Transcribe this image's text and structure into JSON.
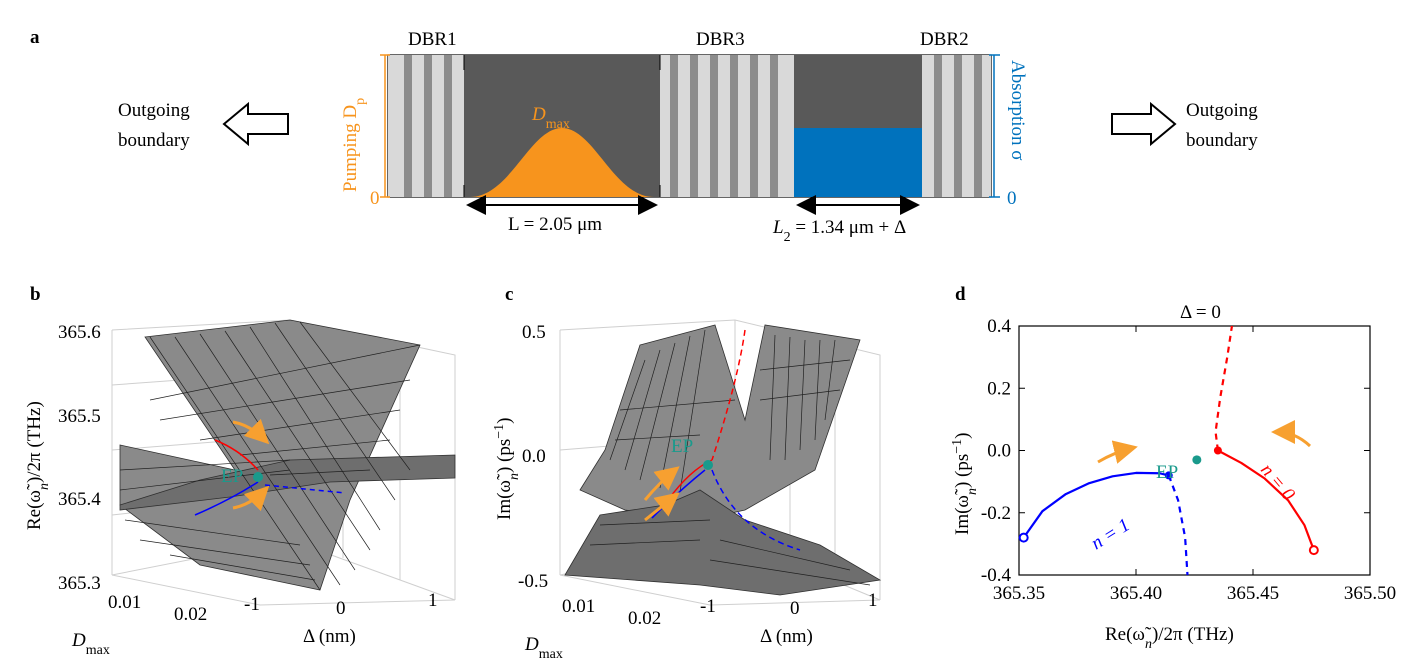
{
  "panels": {
    "a": "a",
    "b": "b",
    "c": "c",
    "d": "d"
  },
  "panel_a": {
    "dbr1": "DBR1",
    "dbr3": "DBR3",
    "dbr2": "DBR2",
    "left_arrow_label_1": "Outgoing",
    "left_arrow_label_2": "boundary",
    "right_arrow_label_1": "Outgoing",
    "right_arrow_label_2": "boundary",
    "pump_axis": "Pumping D",
    "pump_axis_sub": "p",
    "pump_zero": "0",
    "pump_peak": "D",
    "pump_peak_sub": "max",
    "absorption_axis": "Absorption σ",
    "absorption_zero": "0",
    "length_L": "L = 2.05 μm",
    "length_L2": "L",
    "length_L2_sub": "2",
    "length_L2_rest": " = 1.34 μm + Δ",
    "colors": {
      "pump": "#f7941d",
      "absorption": "#0072bd",
      "cavity": "#595959"
    }
  },
  "panel_b": {
    "zlabel": "Re(ω̃",
    "zlabel_sub": "n",
    "zlabel_rest": ")/2π (THz)",
    "zticks": [
      "365.6",
      "365.5",
      "365.4",
      "365.3"
    ],
    "dticks": [
      "0.01",
      "0.02"
    ],
    "dlabel": "D",
    "dlabel_sub": "max",
    "xticks": [
      "-1",
      "0",
      "1"
    ],
    "xlabel": "Δ (nm)",
    "ep": "EP"
  },
  "panel_c": {
    "zlabel": "Im(ω̃",
    "zlabel_sub": "n",
    "zlabel_rest": ") (ps",
    "zlabel_sup": "−1",
    "zlabel_end": ")",
    "zticks": [
      "0.5",
      "0.0",
      "-0.5"
    ],
    "dticks": [
      "0.01",
      "0.02"
    ],
    "dlabel": "D",
    "dlabel_sub": "max",
    "xticks": [
      "-1",
      "0",
      "1"
    ],
    "xlabel": "Δ (nm)",
    "ep": "EP"
  },
  "panel_d": {
    "title": "Δ = 0",
    "xlabel": "Re(ω̃",
    "xlabel_sub": "n",
    "xlabel_rest": ")/2π (THz)",
    "ylabel": "Im(ω̃",
    "ylabel_sub": "n",
    "ylabel_rest": ") (ps",
    "ylabel_sup": "−1",
    "ylabel_end": ")",
    "xticks": [
      "365.35",
      "365.40",
      "365.45",
      "365.50"
    ],
    "yticks": [
      "0.4",
      "0.2",
      "0.0",
      "-0.2",
      "-0.4"
    ],
    "ep": "EP",
    "n1": "n = 1",
    "n0": "n = 0",
    "colors": {
      "n1": "#0000ff",
      "n0": "#ff0000",
      "ep": "#1a9a8c",
      "arrow": "#f7a030"
    }
  },
  "chart_data": {
    "type": "line",
    "title": "Δ = 0",
    "xlabel": "Re(ω̃n)/2π (THz)",
    "ylabel": "Im(ω̃n) (ps−1)",
    "xlim": [
      365.35,
      365.5
    ],
    "ylim": [
      -0.4,
      0.4
    ],
    "series": [
      {
        "name": "n = 1 (solid)",
        "x": [
          365.352,
          365.36,
          365.37,
          365.38,
          365.39,
          365.4,
          365.41,
          365.414
        ],
        "y": [
          -0.28,
          -0.195,
          -0.14,
          -0.105,
          -0.083,
          -0.072,
          -0.073,
          -0.08
        ]
      },
      {
        "name": "n = 1 (dashed)",
        "x": [
          365.414,
          365.418,
          365.421,
          365.422
        ],
        "y": [
          -0.08,
          -0.16,
          -0.28,
          -0.4
        ]
      },
      {
        "name": "n = 0 (solid)",
        "x": [
          365.435,
          365.445,
          365.455,
          365.465,
          365.472,
          365.476
        ],
        "y": [
          0.0,
          -0.04,
          -0.09,
          -0.16,
          -0.24,
          -0.32
        ]
      },
      {
        "name": "n = 0 (dashed)",
        "x": [
          365.435,
          365.434,
          365.436,
          365.439,
          365.441
        ],
        "y": [
          0.0,
          0.06,
          0.17,
          0.3,
          0.4
        ]
      },
      {
        "name": "EP",
        "x": [
          365.426
        ],
        "y": [
          -0.03
        ]
      }
    ]
  }
}
